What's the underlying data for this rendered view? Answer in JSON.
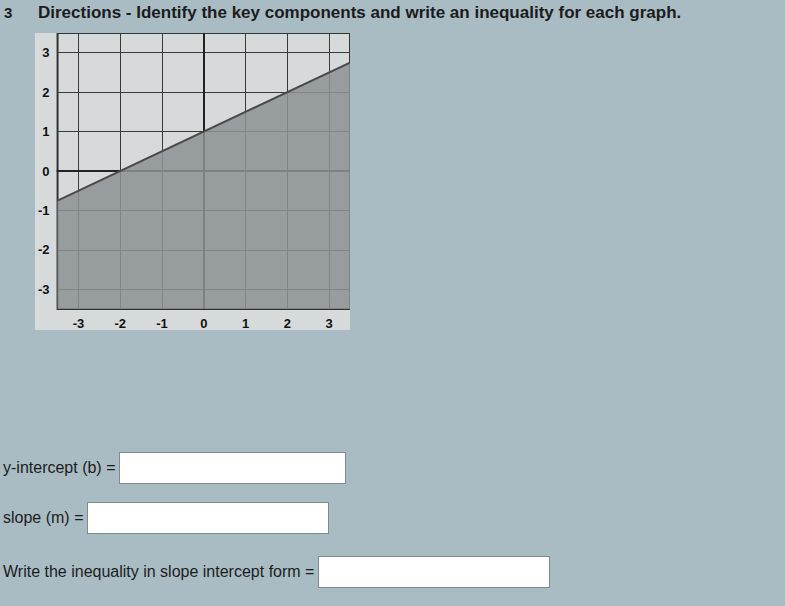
{
  "header": {
    "number": "3",
    "title": "Directions - Identify the key components and write an inequality for each graph."
  },
  "chart_data": {
    "type": "area",
    "x": [
      -3.5,
      3.5
    ],
    "values": [
      -0.75,
      2.75
    ],
    "color": "#4a4a4a",
    "xlim": [
      -3.5,
      3.5
    ],
    "ylim": [
      -3.5,
      3.5
    ],
    "xticks": [
      -3,
      -2,
      -1,
      0,
      1,
      2,
      3
    ],
    "yticks": [
      -3,
      -2,
      -1,
      0,
      1,
      2,
      3
    ],
    "grid": true
  },
  "fields": [
    {
      "label": "y-intercept (b) ="
    },
    {
      "label": "slope (m) ="
    },
    {
      "label": "Write the inequality in slope intercept form ="
    }
  ]
}
